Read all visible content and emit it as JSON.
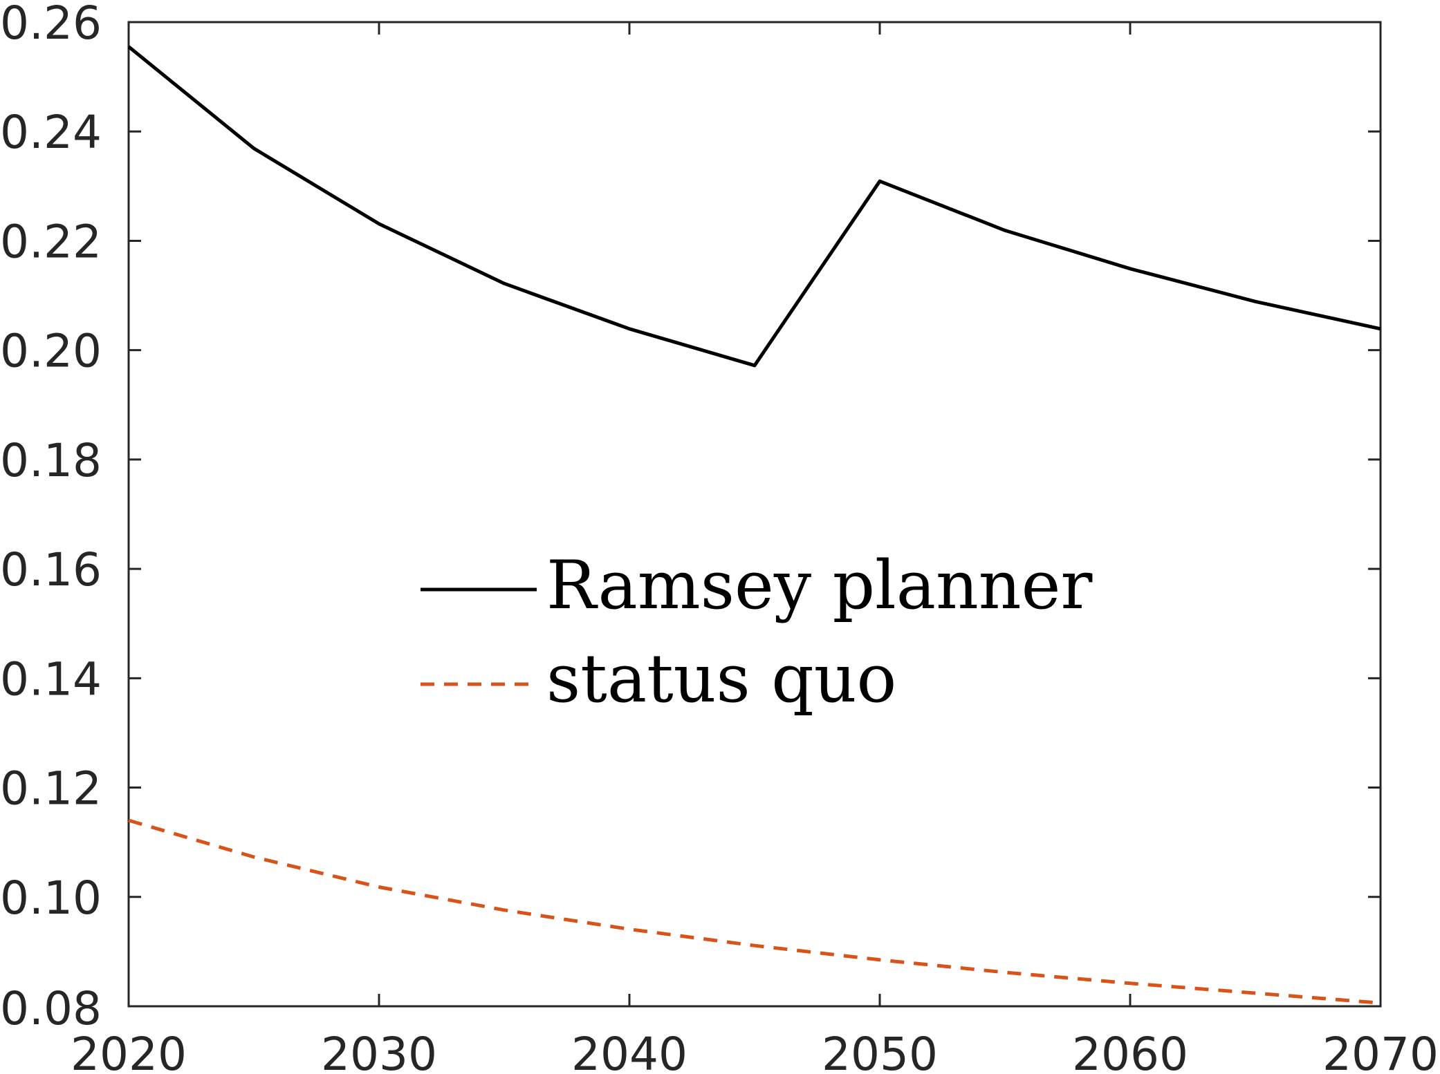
{
  "chart_data": {
    "type": "line",
    "title": "",
    "xlabel": "",
    "ylabel": "",
    "xlim": [
      2020,
      2070
    ],
    "ylim": [
      0.08,
      0.26
    ],
    "xticks": [
      2020,
      2030,
      2040,
      2050,
      2060,
      2070
    ],
    "xtick_labels": [
      "2020",
      "2030",
      "2040",
      "2050",
      "2060",
      "2070"
    ],
    "yticks": [
      0.08,
      0.1,
      0.12,
      0.14,
      0.16,
      0.18,
      0.2,
      0.22,
      0.24,
      0.26
    ],
    "ytick_labels": [
      "0.08",
      "0.10",
      "0.12",
      "0.14",
      "0.16",
      "0.18",
      "0.20",
      "0.22",
      "0.24",
      "0.26"
    ],
    "grid": false,
    "legend_position": "center",
    "series": [
      {
        "name": "Ramsey planner",
        "color": "#000000",
        "style": "solid",
        "x": [
          2020,
          2025,
          2030,
          2035,
          2040,
          2045,
          2050,
          2055,
          2060,
          2065,
          2070
        ],
        "y": [
          0.2555,
          0.2369,
          0.2231,
          0.2122,
          0.2039,
          0.1972,
          0.2309,
          0.2219,
          0.2149,
          0.2089,
          0.2039
        ]
      },
      {
        "name": "status quo",
        "color": "#D95319",
        "style": "dashed",
        "x": [
          2020,
          2025,
          2030,
          2035,
          2040,
          2045,
          2050,
          2055,
          2060,
          2065,
          2070
        ],
        "y": [
          0.114,
          0.1073,
          0.1018,
          0.0976,
          0.0941,
          0.0911,
          0.0885,
          0.0862,
          0.0842,
          0.0824,
          0.0806
        ]
      }
    ]
  }
}
